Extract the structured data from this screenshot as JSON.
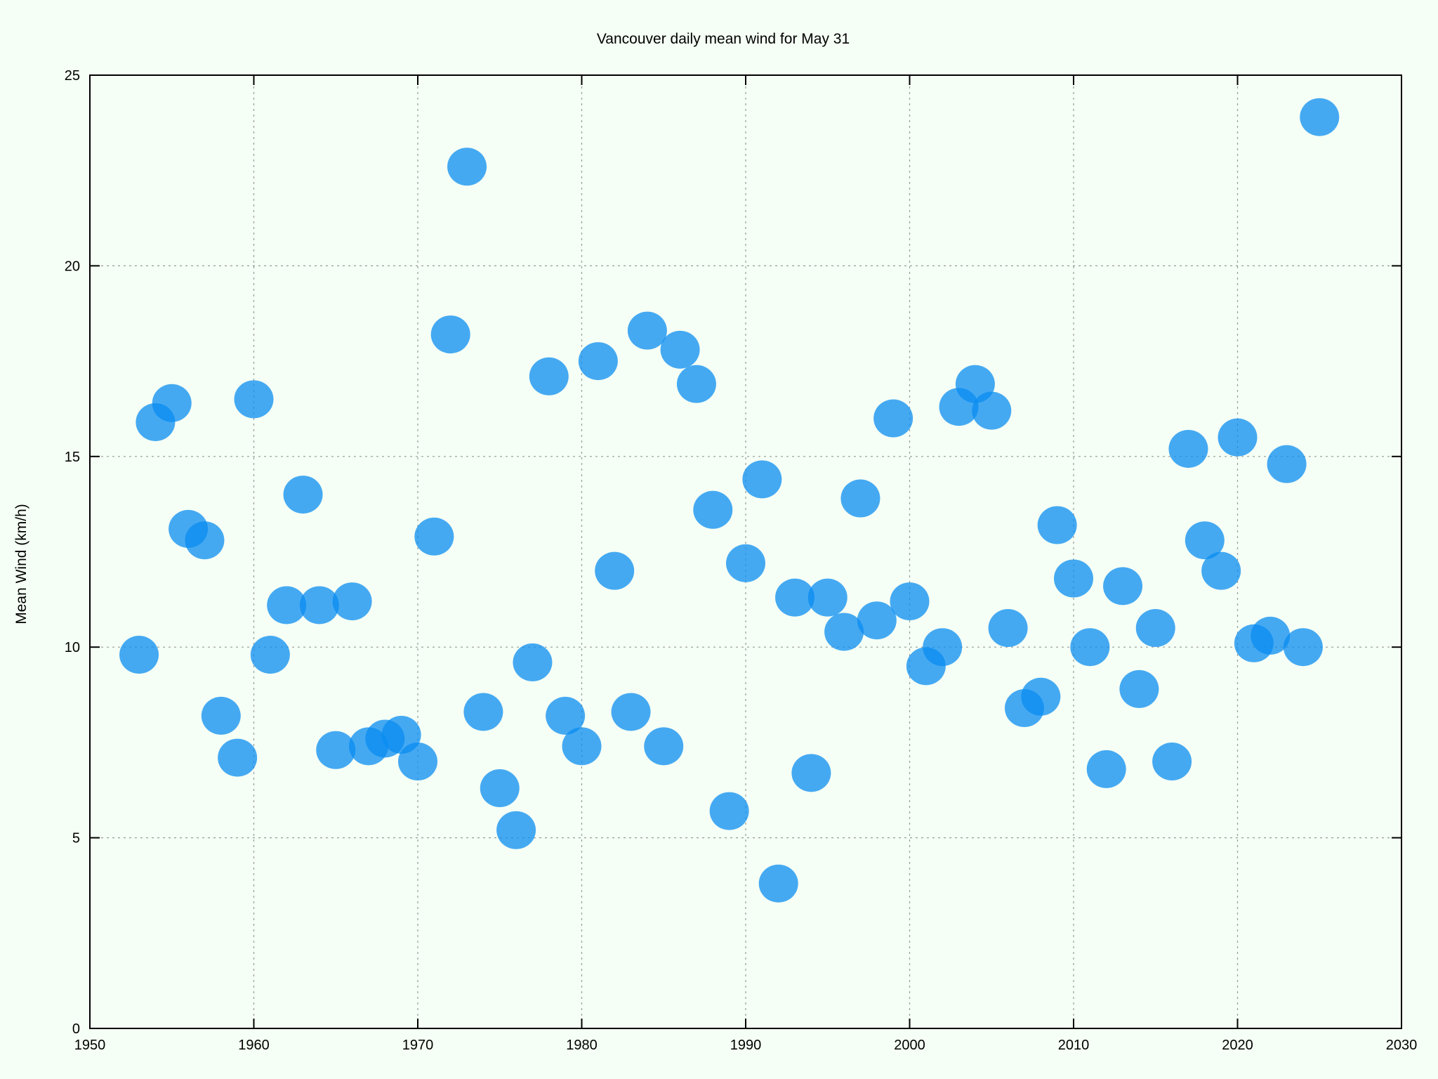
{
  "chart_data": {
    "type": "scatter",
    "title": "Vancouver daily mean wind for May 31",
    "xlabel": "",
    "ylabel": "Mean Wind (km/h)",
    "xlim": [
      1950,
      2030
    ],
    "ylim": [
      0,
      25
    ],
    "xticks": [
      1950,
      1960,
      1970,
      1980,
      1990,
      2000,
      2010,
      2020,
      2030
    ],
    "yticks": [
      0,
      5,
      10,
      15,
      20,
      25
    ],
    "grid": true,
    "legend": "none",
    "color": "#0a8cf0",
    "x": [
      1953,
      1954,
      1955,
      1956,
      1957,
      1958,
      1959,
      1960,
      1961,
      1962,
      1963,
      1964,
      1965,
      1966,
      1967,
      1968,
      1969,
      1970,
      1971,
      1972,
      1973,
      1974,
      1975,
      1976,
      1977,
      1978,
      1979,
      1980,
      1981,
      1982,
      1983,
      1984,
      1985,
      1986,
      1987,
      1988,
      1989,
      1990,
      1991,
      1992,
      1993,
      1994,
      1995,
      1996,
      1997,
      1998,
      1999,
      2000,
      2001,
      2002,
      2003,
      2004,
      2005,
      2006,
      2007,
      2008,
      2009,
      2010,
      2011,
      2012,
      2013,
      2014,
      2015,
      2016,
      2017,
      2018,
      2019,
      2020,
      2021,
      2022,
      2023,
      2024,
      2025
    ],
    "y": [
      9.8,
      15.9,
      16.4,
      13.1,
      12.8,
      8.2,
      7.1,
      16.5,
      9.8,
      11.1,
      14.0,
      11.1,
      7.3,
      11.2,
      7.4,
      7.6,
      7.7,
      7.0,
      12.9,
      18.2,
      22.6,
      8.3,
      6.3,
      5.2,
      9.6,
      17.1,
      8.2,
      7.4,
      17.5,
      12.0,
      8.3,
      18.3,
      7.4,
      17.8,
      16.9,
      13.6,
      5.7,
      12.2,
      14.4,
      3.8,
      11.3,
      6.7,
      11.3,
      10.4,
      13.9,
      10.7,
      16.0,
      11.2,
      9.5,
      10.0,
      16.3,
      16.9,
      16.2,
      10.5,
      8.4,
      8.7,
      13.2,
      11.8,
      10.0,
      6.8,
      11.6,
      8.9,
      10.5,
      7.0,
      15.2,
      12.8,
      12.0,
      15.5,
      10.1,
      10.3,
      14.8,
      10.0,
      23.9
    ]
  }
}
